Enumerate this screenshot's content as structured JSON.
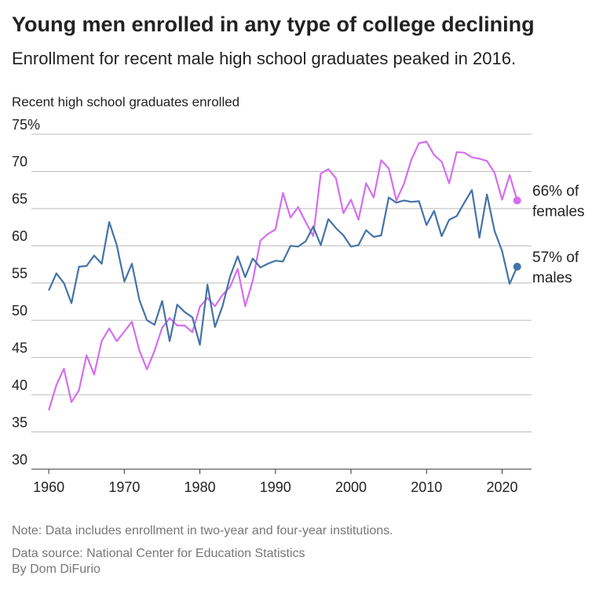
{
  "chart_data": {
    "type": "line",
    "title": "Young men enrolled in any type of college declining",
    "subtitle": "Enrollment for recent male high school graduates peaked in 2016.",
    "y_label": "Recent high school graduates enrolled",
    "notes": [
      "Note: Data includes enrollment in two-year and four-year institutions.",
      "Data source: National Center for Education Statistics",
      "By Dom DiFurio"
    ],
    "x": [
      1960,
      1961,
      1962,
      1963,
      1964,
      1965,
      1966,
      1967,
      1968,
      1969,
      1970,
      1971,
      1972,
      1973,
      1974,
      1975,
      1976,
      1977,
      1978,
      1979,
      1980,
      1981,
      1982,
      1983,
      1984,
      1985,
      1986,
      1987,
      1988,
      1989,
      1990,
      1991,
      1992,
      1993,
      1994,
      1995,
      1996,
      1997,
      1998,
      1999,
      2000,
      2001,
      2002,
      2003,
      2004,
      2005,
      2006,
      2007,
      2008,
      2009,
      2010,
      2011,
      2012,
      2013,
      2014,
      2015,
      2016,
      2017,
      2018,
      2019,
      2020,
      2021,
      2022
    ],
    "series": [
      {
        "color": "#d56ef0",
        "end_label": [
          "66% of",
          "females"
        ],
        "values": [
          37.9,
          41.3,
          43.5,
          39.0,
          40.6,
          45.3,
          42.7,
          47.2,
          48.9,
          47.2,
          48.5,
          49.8,
          45.9,
          43.4,
          45.9,
          49.0,
          50.3,
          49.3,
          49.3,
          48.4,
          51.8,
          53.0,
          51.9,
          53.4,
          54.5,
          56.9,
          51.9,
          55.3,
          60.7,
          61.6,
          62.2,
          67.1,
          63.8,
          65.2,
          63.2,
          61.3,
          69.7,
          70.3,
          69.1,
          64.4,
          66.2,
          63.5,
          68.4,
          66.5,
          71.5,
          70.4,
          66.1,
          68.3,
          71.6,
          73.8,
          74.0,
          72.2,
          71.3,
          68.4,
          72.6,
          72.5,
          71.9,
          71.7,
          71.4,
          69.8,
          66.2,
          69.5,
          66.1
        ]
      },
      {
        "color": "#4573a7",
        "end_label": [
          "57% of",
          "males"
        ],
        "values": [
          54.0,
          56.3,
          55.0,
          52.3,
          57.2,
          57.3,
          58.7,
          57.6,
          63.2,
          60.1,
          55.2,
          57.6,
          52.7,
          50.0,
          49.4,
          52.6,
          47.2,
          52.1,
          51.1,
          50.4,
          46.7,
          54.8,
          49.1,
          51.9,
          55.9,
          58.6,
          55.8,
          58.3,
          57.1,
          57.6,
          58.0,
          57.9,
          60.0,
          59.9,
          60.6,
          62.6,
          60.1,
          63.6,
          62.4,
          61.4,
          59.9,
          60.1,
          62.1,
          61.2,
          61.4,
          66.5,
          65.8,
          66.1,
          65.9,
          66.0,
          62.8,
          64.7,
          61.3,
          63.5,
          64.0,
          65.8,
          67.5,
          61.1,
          66.9,
          62.0,
          59.3,
          54.9,
          57.2
        ]
      }
    ],
    "xlim": [
      1957.7,
      2023.9
    ],
    "xticks": [
      1960,
      1970,
      1980,
      1990,
      2000,
      2010,
      2020
    ],
    "ylim": [
      30,
      75
    ],
    "yticks": [
      30,
      35,
      40,
      45,
      50,
      55,
      60,
      65,
      70,
      {
        "value": 75,
        "label": "75%"
      }
    ],
    "grid": true
  }
}
